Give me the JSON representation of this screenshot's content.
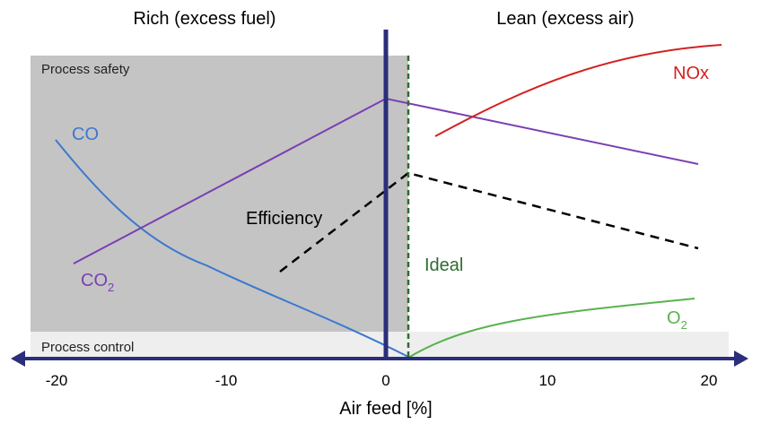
{
  "header": {
    "rich_label": "Rich (excess fuel)",
    "lean_label": "Lean (excess air)"
  },
  "regions": {
    "process_safety": "Process safety",
    "process_control": "Process control"
  },
  "axis": {
    "xlabel": "Air feed [%]",
    "ticks": [
      "-20",
      "-10",
      "0",
      "10",
      "20"
    ]
  },
  "curves": {
    "co": "CO",
    "co2_main": "CO",
    "co2_sub": "2",
    "efficiency": "Efficiency",
    "nox": "NOx",
    "o2_main": "O",
    "o2_sub": "2",
    "ideal": "Ideal"
  },
  "colors": {
    "co": "#3b78cf",
    "co2": "#7a3fb3",
    "efficiency": "#000000",
    "nox": "#d42020",
    "o2": "#59b24e",
    "ideal": "#2f6b2f",
    "axis": "#2b2e7a",
    "safety_region": "#c4c4c4",
    "control_region": "#eeeeee"
  }
}
